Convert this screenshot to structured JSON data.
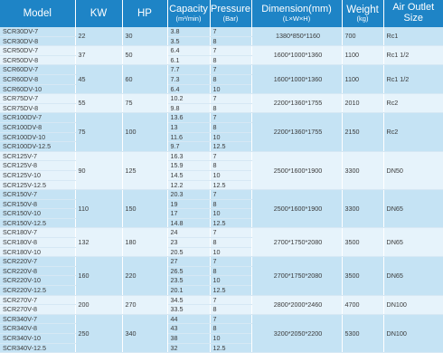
{
  "header": {
    "model": "Model",
    "kw": "KW",
    "hp": "HP",
    "capacity": "Capacity",
    "capacity_unit": "(m³/min)",
    "pressure": "Pressure",
    "pressure_unit": "(Bar)",
    "dimension": "Dimension(mm)",
    "dimension_unit": "(L×W×H)",
    "weight": "Weight",
    "weight_unit": "(kg)",
    "outlet": "Air Outlet Size"
  },
  "groups": [
    {
      "kw": "22",
      "hp": "30",
      "dimension": "1380*850*1160",
      "weight": "700",
      "outlet": "Rc1",
      "rows": [
        {
          "model": "SCR30DV-7",
          "capacity": "3.8",
          "pressure": "7"
        },
        {
          "model": "SCR30DV-8",
          "capacity": "3.5",
          "pressure": "8"
        }
      ]
    },
    {
      "kw": "37",
      "hp": "50",
      "dimension": "1600*1000*1360",
      "weight": "1100",
      "outlet": "Rc1 1/2",
      "rows": [
        {
          "model": "SCR50DV-7",
          "capacity": "6.4",
          "pressure": "7"
        },
        {
          "model": "SCR50DV-8",
          "capacity": "6.1",
          "pressure": "8"
        }
      ]
    },
    {
      "kw": "45",
      "hp": "60",
      "dimension": "1600*1000*1360",
      "weight": "1100",
      "outlet": "Rc1 1/2",
      "rows": [
        {
          "model": "SCR60DV-7",
          "capacity": "7.7",
          "pressure": "7"
        },
        {
          "model": "SCR60DV-8",
          "capacity": "7.3",
          "pressure": "8"
        },
        {
          "model": "SCR60DV-10",
          "capacity": "6.4",
          "pressure": "10"
        }
      ]
    },
    {
      "kw": "55",
      "hp": "75",
      "dimension": "2200*1360*1755",
      "weight": "2010",
      "outlet": "Rc2",
      "rows": [
        {
          "model": "SCR75DV-7",
          "capacity": "10.2",
          "pressure": "7"
        },
        {
          "model": "SCR75DV-8",
          "capacity": "9.8",
          "pressure": "8"
        }
      ]
    },
    {
      "kw": "75",
      "hp": "100",
      "dimension": "2200*1360*1755",
      "weight": "2150",
      "outlet": "Rc2",
      "rows": [
        {
          "model": "SCR100DV-7",
          "capacity": "13.6",
          "pressure": "7"
        },
        {
          "model": "SCR100DV-8",
          "capacity": "13",
          "pressure": "8"
        },
        {
          "model": "SCR100DV-10",
          "capacity": "11.6",
          "pressure": "10"
        },
        {
          "model": "SCR100DV-12.5",
          "capacity": "9.7",
          "pressure": "12.5"
        }
      ]
    },
    {
      "kw": "90",
      "hp": "125",
      "dimension": "2500*1600*1900",
      "weight": "3300",
      "outlet": "DN50",
      "rows": [
        {
          "model": "SCR125V-7",
          "capacity": "16.3",
          "pressure": "7"
        },
        {
          "model": "SCR125V-8",
          "capacity": "15.9",
          "pressure": "8"
        },
        {
          "model": "SCR125V-10",
          "capacity": "14.5",
          "pressure": "10"
        },
        {
          "model": "SCR125V-12.5",
          "capacity": "12.2",
          "pressure": "12.5"
        }
      ]
    },
    {
      "kw": "110",
      "hp": "150",
      "dimension": "2500*1600*1900",
      "weight": "3300",
      "outlet": "DN65",
      "rows": [
        {
          "model": "SCR150V-7",
          "capacity": "20.3",
          "pressure": "7"
        },
        {
          "model": "SCR150V-8",
          "capacity": "19",
          "pressure": "8"
        },
        {
          "model": "SCR150V-10",
          "capacity": "17",
          "pressure": "10"
        },
        {
          "model": "SCR150V-12.5",
          "capacity": "14.8",
          "pressure": "12.5"
        }
      ]
    },
    {
      "kw": "132",
      "hp": "180",
      "dimension": "2700*1750*2080",
      "weight": "3500",
      "outlet": "DN65",
      "rows": [
        {
          "model": "SCR180V-7",
          "capacity": "24",
          "pressure": "7"
        },
        {
          "model": "SCR180V-8",
          "capacity": "23",
          "pressure": "8"
        },
        {
          "model": "SCR180V-10",
          "capacity": "20.5",
          "pressure": "10"
        }
      ]
    },
    {
      "kw": "160",
      "hp": "220",
      "dimension": "2700*1750*2080",
      "weight": "3500",
      "outlet": "DN65",
      "rows": [
        {
          "model": "SCR220V-7",
          "capacity": "27",
          "pressure": "7"
        },
        {
          "model": "SCR220V-8",
          "capacity": "26.5",
          "pressure": "8"
        },
        {
          "model": "SCR220V-10",
          "capacity": "23.5",
          "pressure": "10"
        },
        {
          "model": "SCR220V-12.5",
          "capacity": "20.1",
          "pressure": "12.5"
        }
      ]
    },
    {
      "kw": "200",
      "hp": "270",
      "dimension": "2800*2000*2460",
      "weight": "4700",
      "outlet": "DN100",
      "rows": [
        {
          "model": "SCR270V-7",
          "capacity": "34.5",
          "pressure": "7"
        },
        {
          "model": "SCR270V-8",
          "capacity": "33.5",
          "pressure": "8"
        }
      ]
    },
    {
      "kw": "250",
      "hp": "340",
      "dimension": "3200*2050*2200",
      "weight": "5300",
      "outlet": "DN100",
      "rows": [
        {
          "model": "SCR340V-7",
          "capacity": "44",
          "pressure": "7"
        },
        {
          "model": "SCR340V-8",
          "capacity": "43",
          "pressure": "8"
        },
        {
          "model": "SCR340V-10",
          "capacity": "38",
          "pressure": "10"
        },
        {
          "model": "SCR340V-12.5",
          "capacity": "32",
          "pressure": "12.5"
        }
      ]
    }
  ],
  "colors": {
    "header_bg": "#1e84c6",
    "row_dark": "#c5e3f4",
    "row_light": "#e6f3fb",
    "text": "#3a3a3a"
  }
}
